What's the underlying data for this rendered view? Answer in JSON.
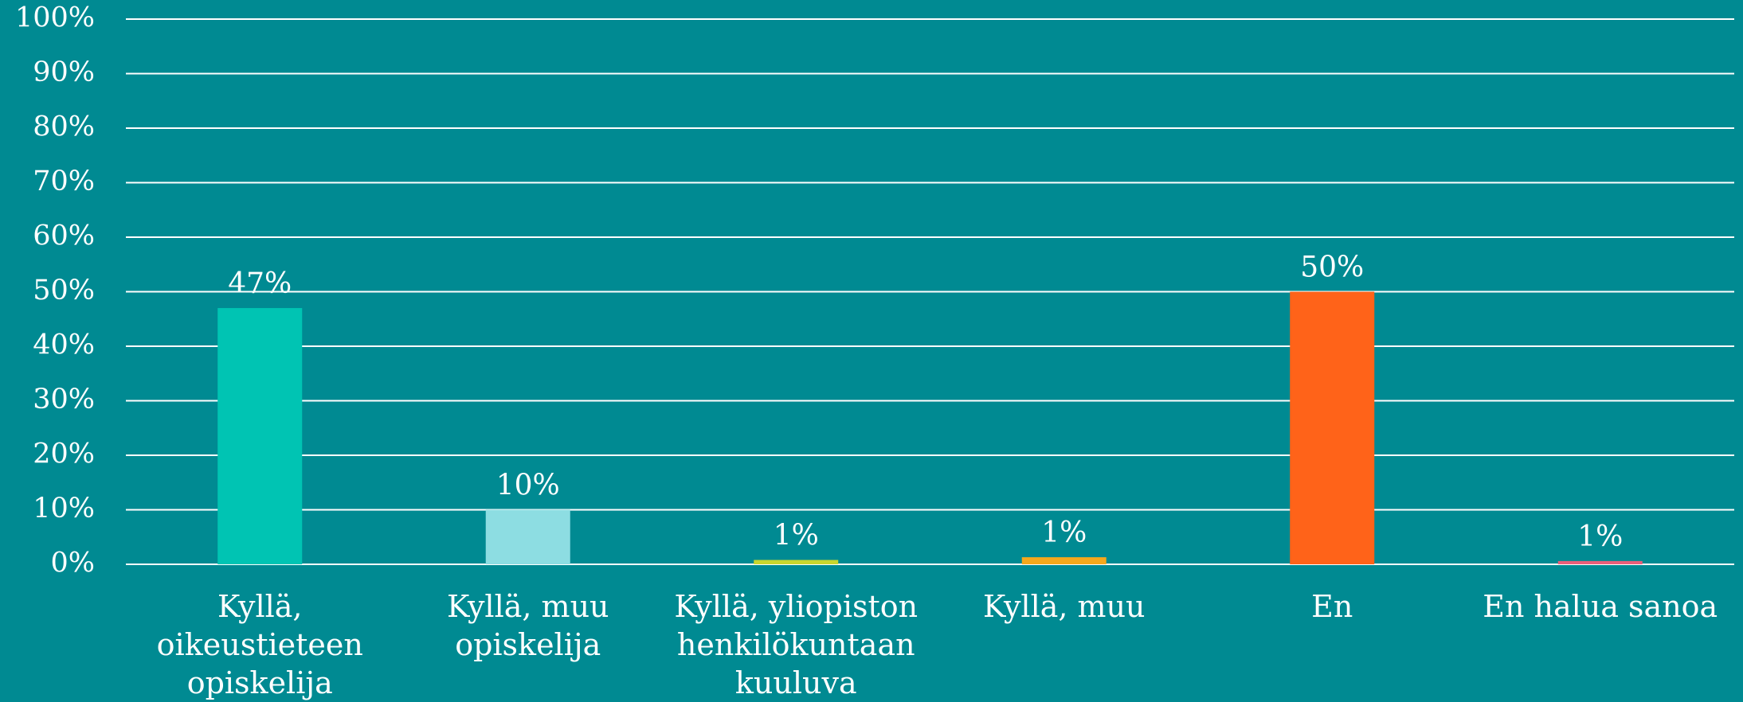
{
  "chart_data": {
    "type": "bar",
    "categories": [
      "Kyllä, oikeustieteen opiskelija",
      "Kyllä, muu opiskelija",
      "Kyllä, yliopiston henkilökuntaan kuuluva",
      "Kyllä, muu",
      "En",
      "En halua sanoa"
    ],
    "values": [
      47,
      10,
      0.8,
      1.3,
      50,
      0.6
    ],
    "value_labels": [
      "47%",
      "10%",
      "1%",
      "1%",
      "50%",
      "1%"
    ],
    "colors": [
      "#00c4b3",
      "#8ddde2",
      "#c8d62e",
      "#f5a81c",
      "#ff6319",
      "#e8607a"
    ],
    "ylim": [
      0,
      100
    ],
    "yticks": [
      {
        "value": 0,
        "label": "0%"
      },
      {
        "value": 10,
        "label": "10%"
      },
      {
        "value": 20,
        "label": "20%"
      },
      {
        "value": 30,
        "label": "30%"
      },
      {
        "value": 40,
        "label": "40%"
      },
      {
        "value": 50,
        "label": "50%"
      },
      {
        "value": 60,
        "label": "60%"
      },
      {
        "value": 70,
        "label": "70%"
      },
      {
        "value": 80,
        "label": "80%"
      },
      {
        "value": 90,
        "label": "90%"
      },
      {
        "value": 100,
        "label": "100%"
      }
    ],
    "grid": true
  }
}
